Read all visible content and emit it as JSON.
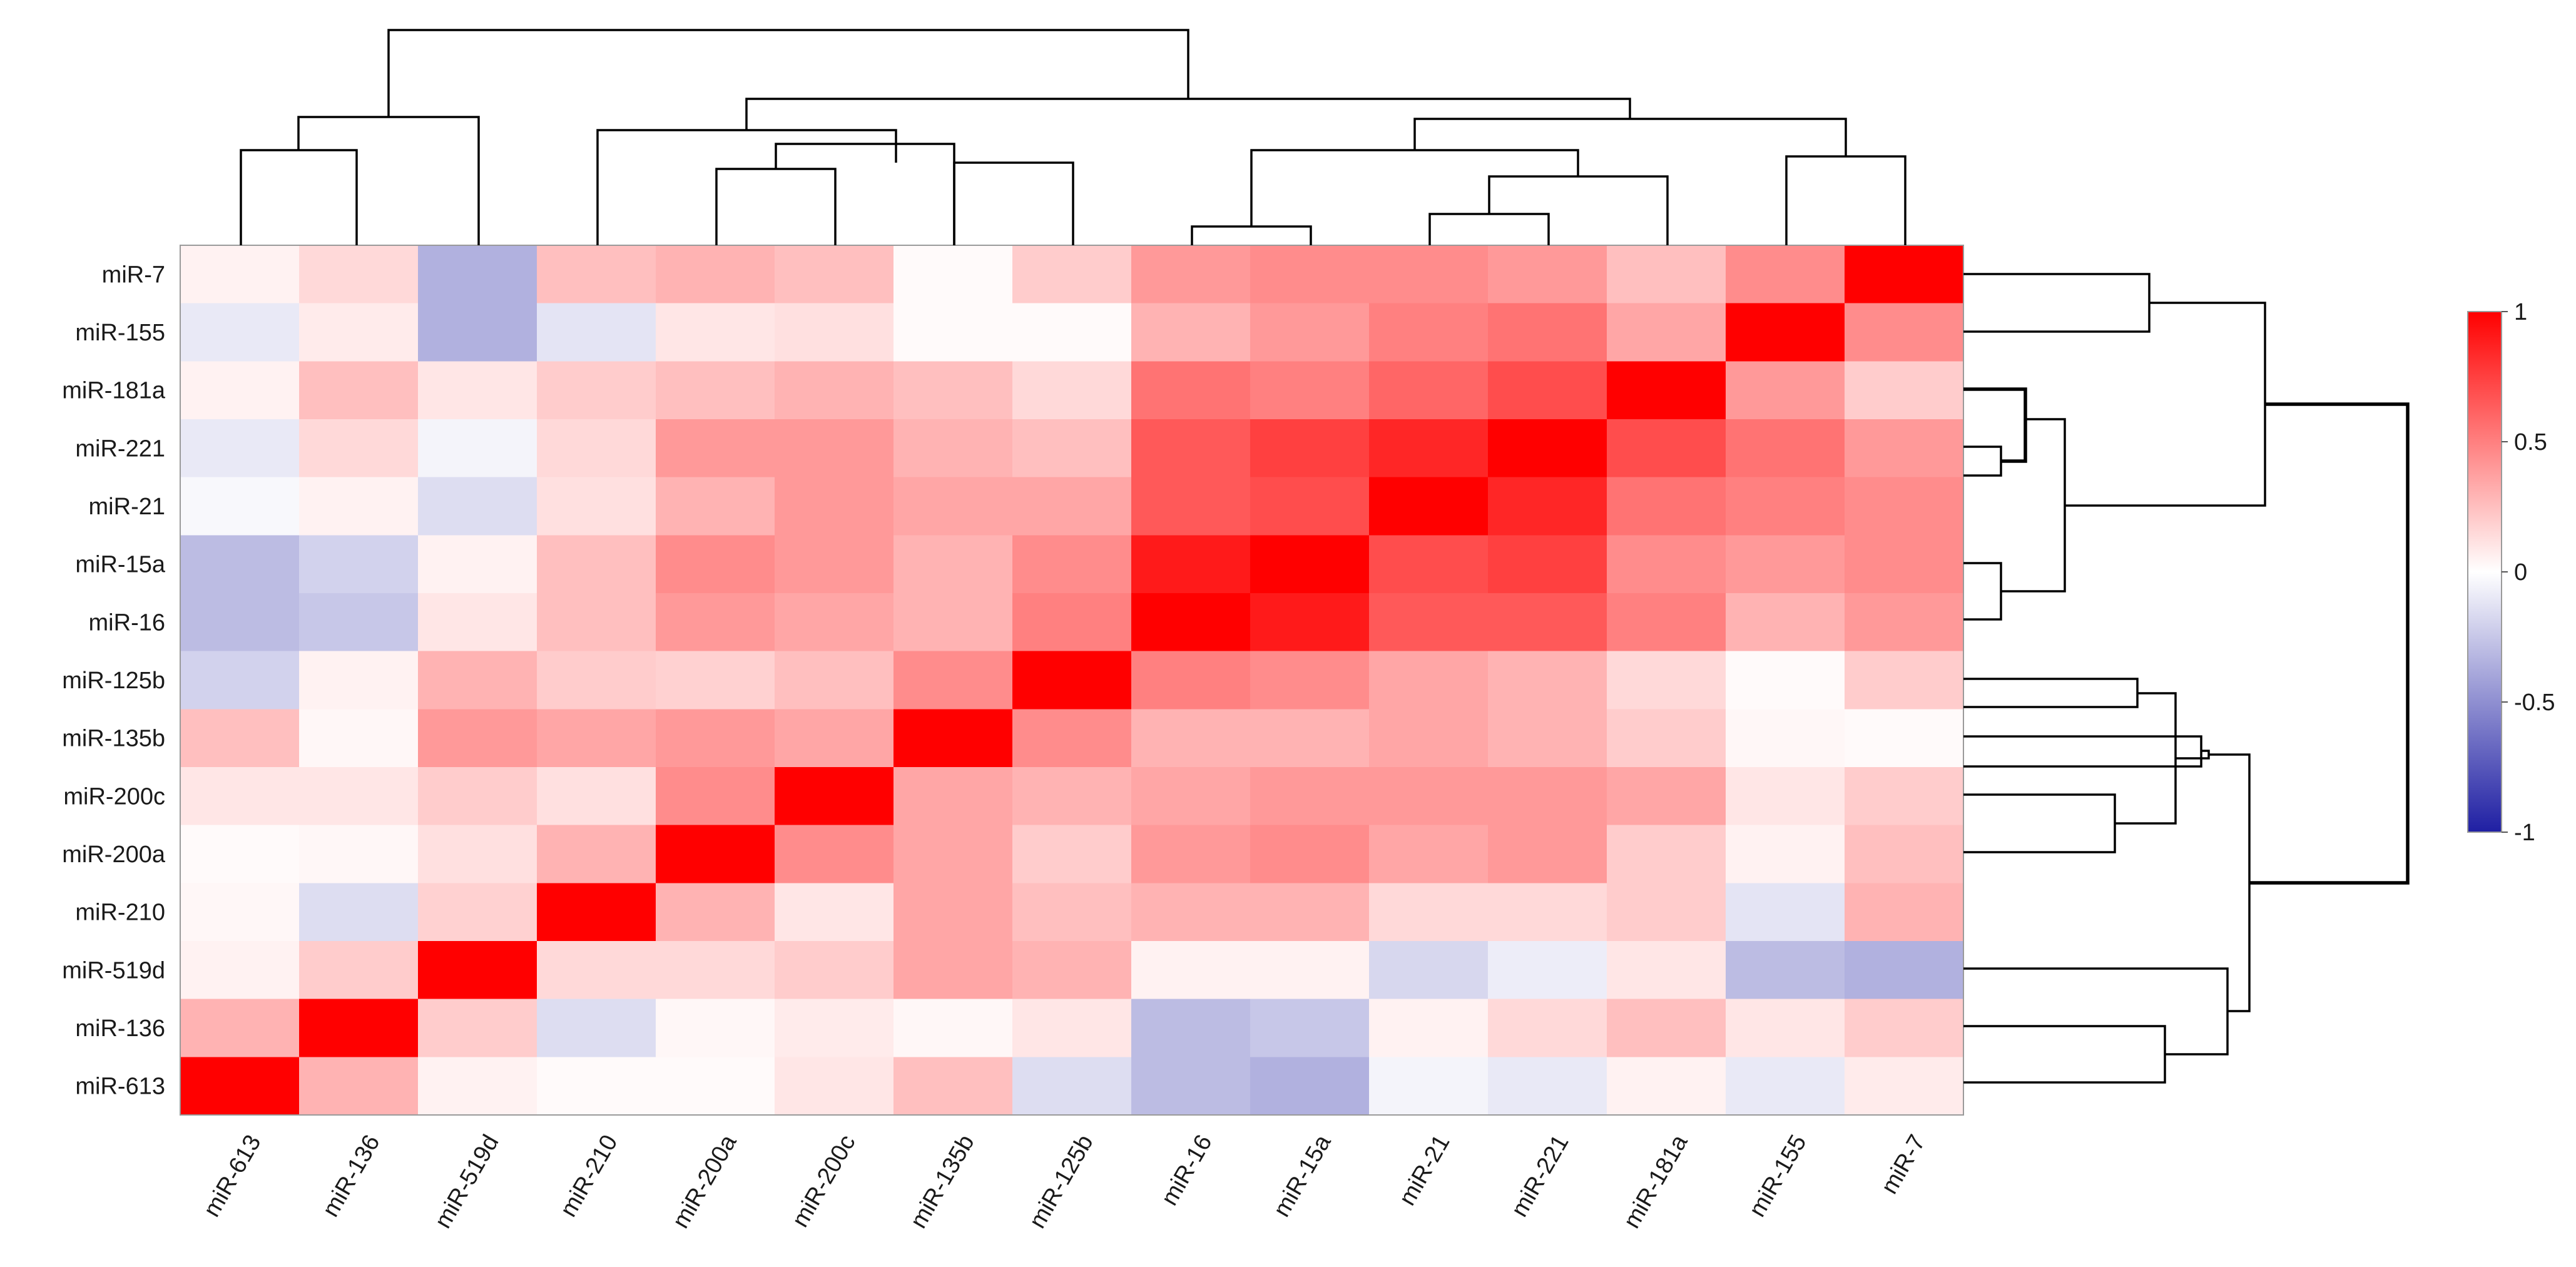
{
  "chart_data": {
    "type": "heatmap",
    "title": "",
    "xlabel": "",
    "ylabel": "",
    "row_labels": [
      "miR-7",
      "miR-155",
      "miR-181a",
      "miR-221",
      "miR-21",
      "miR-15a",
      "miR-16",
      "miR-125b",
      "miR-135b",
      "miR-200c",
      "miR-200a",
      "miR-210",
      "miR-519d",
      "miR-136",
      "miR-613"
    ],
    "col_labels": [
      "miR-613",
      "miR-136",
      "miR-519d",
      "miR-210",
      "miR-200a",
      "miR-200c",
      "miR-135b",
      "miR-125b",
      "miR-16",
      "miR-15a",
      "miR-21",
      "miR-221",
      "miR-181a",
      "miR-155",
      "miR-7"
    ],
    "values": [
      [
        0.05,
        0.15,
        -0.35,
        0.25,
        0.3,
        0.25,
        0.02,
        0.2,
        0.4,
        0.45,
        0.45,
        0.4,
        0.25,
        0.45,
        1.0
      ],
      [
        -0.1,
        0.08,
        -0.35,
        -0.12,
        0.1,
        0.12,
        0.02,
        0.02,
        0.3,
        0.4,
        0.5,
        0.55,
        0.35,
        1.0,
        0.45
      ],
      [
        0.05,
        0.25,
        0.1,
        0.2,
        0.25,
        0.3,
        0.25,
        0.15,
        0.55,
        0.5,
        0.6,
        0.7,
        1.0,
        0.4,
        0.2
      ],
      [
        -0.1,
        0.15,
        -0.05,
        0.15,
        0.4,
        0.4,
        0.3,
        0.25,
        0.65,
        0.75,
        0.85,
        1.0,
        0.7,
        0.55,
        0.4
      ],
      [
        -0.03,
        0.05,
        -0.15,
        0.12,
        0.3,
        0.4,
        0.35,
        0.35,
        0.65,
        0.7,
        1.0,
        0.85,
        0.55,
        0.5,
        0.45
      ],
      [
        -0.3,
        -0.2,
        0.05,
        0.25,
        0.45,
        0.4,
        0.3,
        0.45,
        0.9,
        1.0,
        0.7,
        0.75,
        0.45,
        0.4,
        0.45
      ],
      [
        -0.3,
        -0.25,
        0.1,
        0.25,
        0.4,
        0.35,
        0.3,
        0.5,
        1.0,
        0.9,
        0.65,
        0.65,
        0.5,
        0.3,
        0.4
      ],
      [
        -0.2,
        0.05,
        0.3,
        0.2,
        0.18,
        0.25,
        0.45,
        1.0,
        0.5,
        0.45,
        0.35,
        0.3,
        0.15,
        0.02,
        0.2
      ],
      [
        0.25,
        0.03,
        0.4,
        0.35,
        0.4,
        0.35,
        1.0,
        0.45,
        0.3,
        0.3,
        0.35,
        0.3,
        0.2,
        0.03,
        0.02
      ],
      [
        0.1,
        0.1,
        0.2,
        0.12,
        0.45,
        1.0,
        0.35,
        0.3,
        0.35,
        0.4,
        0.4,
        0.4,
        0.35,
        0.1,
        0.2
      ],
      [
        0.02,
        0.03,
        0.12,
        0.3,
        1.0,
        0.45,
        0.35,
        0.2,
        0.4,
        0.45,
        0.35,
        0.4,
        0.2,
        0.05,
        0.25
      ],
      [
        0.03,
        -0.15,
        0.18,
        1.0,
        0.3,
        0.1,
        0.35,
        0.25,
        0.3,
        0.3,
        0.15,
        0.15,
        0.2,
        -0.12,
        0.3
      ],
      [
        0.05,
        0.2,
        1.0,
        0.15,
        0.15,
        0.2,
        0.35,
        0.3,
        0.05,
        0.05,
        -0.18,
        -0.08,
        0.1,
        -0.3,
        -0.35
      ],
      [
        0.3,
        1.0,
        0.2,
        -0.15,
        0.03,
        0.08,
        0.03,
        0.1,
        -0.3,
        -0.25,
        0.05,
        0.15,
        0.25,
        0.1,
        0.2
      ],
      [
        1.0,
        0.3,
        0.05,
        0.02,
        0.02,
        0.1,
        0.25,
        -0.15,
        -0.3,
        -0.35,
        -0.05,
        -0.1,
        0.05,
        -0.1,
        0.08
      ]
    ],
    "colorbar": {
      "range": [
        -1,
        1
      ],
      "ticks": [
        "1",
        "0.5",
        "0",
        "-0.5",
        "-1"
      ],
      "colors": {
        "low": "#1f1fa3",
        "mid": "#ffffff",
        "high": "#ff0000"
      }
    },
    "grid": false,
    "legend_position": "right"
  }
}
